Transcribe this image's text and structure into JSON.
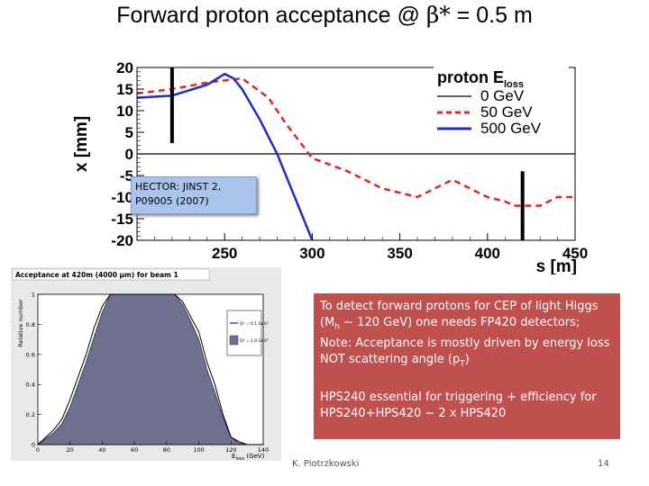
{
  "slide": {
    "title_prefix": "Forward proton acceptance @ ",
    "title_beta": "β*",
    "title_suffix": " = 0.5 m",
    "footer_author": "K. Piotrzkowski",
    "page_number": "14"
  },
  "hector_box": {
    "line1": "HECTOR:  JINST 2,",
    "line2": "P09005 (2007)"
  },
  "note": {
    "p1_a": "To detect forward protons for CEP of light Higgs (M",
    "p1_sub": "h",
    "p1_b": " ~ 120 GeV) one needs FP420 detectors; Note: Acceptance is mostly driven by energy loss NOT scattering angle (p",
    "p1_sub2": "T",
    "p1_c": ")",
    "p2": "HPS240 essential for triggering + efficiency for HPS240+HPS420  ~ 2 x HPS420"
  },
  "chart_data": [
    {
      "type": "line",
      "ylabel": "x [mm]",
      "xlabel": "s [m]",
      "xlim": [
        200,
        450
      ],
      "ylim": [
        -20,
        20
      ],
      "x_ticks": [
        "250",
        "300",
        "350",
        "400",
        "450"
      ],
      "y_ticks": [
        "20",
        "15",
        "10",
        "5",
        "0",
        "-5",
        "-10",
        "-15",
        "-20"
      ],
      "legend_title": "proton E",
      "legend_title_sub": "loss",
      "legend_position": "top-right",
      "colors": {
        "s0": "#000000",
        "s50": "#e32626",
        "s500": "#1d2fc8",
        "marker": "#000000"
      },
      "series": [
        {
          "name": "0 GeV",
          "dash": "solid",
          "x": [
            200,
            450
          ],
          "y": [
            0,
            0
          ]
        },
        {
          "name": "50 GeV",
          "dash": "dashed",
          "x": [
            200,
            220,
            240,
            260,
            275,
            285,
            300,
            320,
            340,
            360,
            380,
            400,
            410,
            415,
            420,
            430,
            440,
            450
          ],
          "y": [
            14,
            15,
            16.5,
            17.5,
            13,
            7,
            -1,
            -4,
            -8,
            -10,
            -6,
            -10,
            -11,
            -12,
            -12,
            -12,
            -10,
            -10
          ]
        },
        {
          "name": "500 GeV",
          "dash": "solid",
          "x": [
            200,
            220,
            240,
            250,
            255,
            260,
            270,
            280,
            290,
            300
          ],
          "y": [
            13,
            13.5,
            16,
            18.5,
            17.5,
            15,
            8,
            0,
            -10,
            -20
          ]
        }
      ],
      "markers": [
        {
          "s": 220,
          "from": 2.5,
          "to": 20
        },
        {
          "s": 420,
          "from": -20,
          "to": -4
        }
      ]
    },
    {
      "type": "area",
      "title": "Acceptance at 420m (4000 µm)  for beam 1",
      "ylabel": "Relative number",
      "xlabel": "E",
      "xlabel_sub": "loss",
      "xlabel_unit": " (GeV)",
      "xlim": [
        0,
        140
      ],
      "ylim": [
        0,
        1
      ],
      "x_ticks": [
        "0",
        "20",
        "40",
        "60",
        "80",
        "100",
        "120",
        "140"
      ],
      "y_ticks": [
        "0",
        "0.2",
        "0.4",
        "0.6",
        "0.8",
        "1"
      ],
      "legend": [
        "Q² = 0.1 GeV²",
        "Q² = 1.0 GeV²"
      ],
      "colors": {
        "fill": "#6f6f8f",
        "line": "#000000"
      },
      "series": [
        {
          "name": "Q² = 0.1 GeV²",
          "x": [
            0,
            5,
            10,
            15,
            20,
            25,
            30,
            35,
            40,
            45,
            50,
            55,
            60,
            65,
            70,
            75,
            80,
            85,
            90,
            95,
            100,
            105,
            110,
            115,
            120,
            125,
            130,
            140
          ],
          "y": [
            0,
            0.05,
            0.1,
            0.17,
            0.3,
            0.45,
            0.6,
            0.78,
            0.92,
            1,
            1,
            1,
            1,
            1,
            1,
            1,
            1,
            1,
            0.95,
            0.85,
            0.75,
            0.55,
            0.4,
            0.2,
            0.05,
            0.02,
            0,
            0
          ]
        },
        {
          "name": "Q² = 1.0 GeV²",
          "x": [
            0,
            5,
            10,
            15,
            20,
            25,
            30,
            35,
            40,
            45,
            50,
            55,
            60,
            65,
            70,
            75,
            80,
            85,
            90,
            95,
            100,
            105,
            110,
            115,
            120,
            125,
            130,
            140
          ],
          "y": [
            0,
            0.04,
            0.08,
            0.14,
            0.25,
            0.4,
            0.55,
            0.72,
            0.88,
            1,
            1,
            1,
            1,
            1,
            1,
            1,
            1,
            1,
            0.93,
            0.82,
            0.7,
            0.5,
            0.35,
            0.18,
            0.05,
            0.01,
            0,
            0
          ]
        }
      ]
    }
  ]
}
